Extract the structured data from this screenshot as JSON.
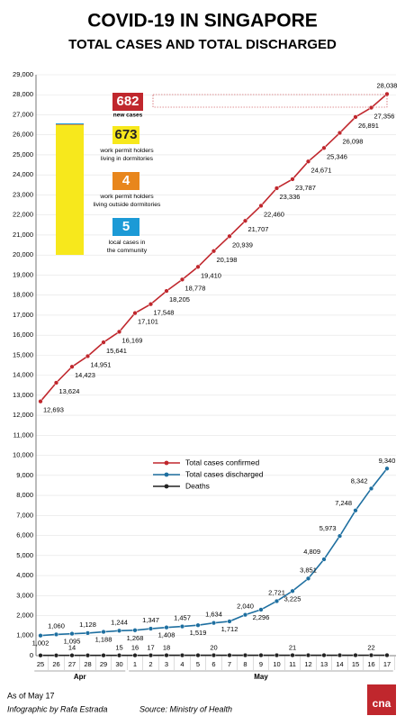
{
  "chart_data": {
    "type": "line",
    "title": "COVID-19 IN SINGAPORE",
    "subtitle": "TOTAL CASES AND TOTAL DISCHARGED",
    "categories": [
      "25",
      "26",
      "27",
      "28",
      "29",
      "30",
      "1",
      "2",
      "3",
      "4",
      "5",
      "6",
      "7",
      "8",
      "9",
      "10",
      "11",
      "12",
      "13",
      "14",
      "15",
      "16",
      "17"
    ],
    "months": [
      {
        "label": "Apr",
        "from": 0,
        "to": 5
      },
      {
        "label": "May",
        "from": 6,
        "to": 22
      }
    ],
    "series": [
      {
        "name": "Total cases confirmed",
        "color": "#c0272d",
        "values": [
          12693,
          13624,
          14423,
          14951,
          15641,
          16169,
          17101,
          17548,
          18205,
          18778,
          19410,
          20198,
          20939,
          21707,
          22460,
          23336,
          23787,
          24671,
          25346,
          26098,
          26891,
          27356,
          28038
        ],
        "value_labels": [
          "12,693",
          "13,624",
          "14,423",
          "14,951",
          "15,641",
          "16,169",
          "17,101",
          "17,548",
          "18,205",
          "18,778",
          "19,410",
          "20,198",
          "20,939",
          "21,707",
          "22,460",
          "23,336",
          "23,787",
          "24,671",
          "25,346",
          "26,098",
          "26,891",
          "27,356",
          "28,038"
        ]
      },
      {
        "name": "Total cases discharged",
        "color": "#1e6fa0",
        "values": [
          1002,
          1060,
          1095,
          1128,
          1188,
          1244,
          1268,
          1347,
          1408,
          1457,
          1519,
          1634,
          1712,
          2040,
          2296,
          2721,
          3225,
          3851,
          4809,
          5973,
          7248,
          8342,
          9340
        ],
        "value_labels": [
          "1,002",
          "1,060",
          "1,095",
          "1,128",
          "1,188",
          "1,244",
          "1,268",
          "1,347",
          "1,408",
          "1,457",
          "1,519",
          "1,634",
          "1,712",
          "2,040",
          "2,296",
          "2,721",
          "3,225",
          "3,851",
          "4,809",
          "5,973",
          "7,248",
          "8,342",
          "9,340"
        ]
      },
      {
        "name": "Deaths",
        "color": "#222222",
        "values": [
          12,
          12,
          14,
          14,
          14,
          15,
          16,
          17,
          18,
          18,
          18,
          20,
          20,
          20,
          20,
          20,
          21,
          21,
          21,
          21,
          21,
          22,
          22
        ],
        "value_labels": [
          null,
          null,
          "14",
          null,
          null,
          "15",
          "16",
          "17",
          "18",
          null,
          null,
          "20",
          null,
          null,
          null,
          null,
          "21",
          null,
          null,
          null,
          null,
          "22",
          null
        ]
      }
    ],
    "ylim": [
      0,
      29000
    ],
    "yticks": [
      0,
      {
        "value": 1000,
        "label": "1,000"
      },
      {
        "value": 2000,
        "label": "2,000"
      },
      {
        "value": 3000,
        "label": "3,000"
      },
      {
        "value": 4000,
        "label": "4,000"
      },
      {
        "value": 5000,
        "label": "5,000"
      },
      {
        "value": 6000,
        "label": "6,000"
      },
      {
        "value": 7000,
        "label": "7,000"
      },
      {
        "value": 8000,
        "label": "8,000"
      },
      {
        "value": 9000,
        "label": "9,000"
      },
      {
        "value": 10000,
        "label": "10,000"
      },
      {
        "value": 11000,
        "label": "11,000"
      },
      {
        "value": 12000,
        "label": "12,000"
      },
      {
        "value": 13000,
        "label": "13,000"
      },
      {
        "value": 14000,
        "label": "14,000"
      },
      {
        "value": 15000,
        "label": "15,000"
      },
      {
        "value": 16000,
        "label": "16,000"
      },
      {
        "value": 17000,
        "label": "17,000"
      },
      {
        "value": 18000,
        "label": "18,000"
      },
      {
        "value": 19000,
        "label": "19,000"
      },
      {
        "value": 20000,
        "label": "20,000"
      },
      {
        "value": 21000,
        "label": "21,000"
      },
      {
        "value": 22000,
        "label": "22,000"
      },
      {
        "value": 23000,
        "label": "23,000"
      },
      {
        "value": 24000,
        "label": "24,000"
      },
      {
        "value": 25000,
        "label": "25,000"
      },
      {
        "value": 26000,
        "label": "26,000"
      },
      {
        "value": 27000,
        "label": "27,000"
      },
      {
        "value": 28000,
        "label": "28,000"
      },
      {
        "value": 29000,
        "label": "29,000"
      }
    ],
    "grid": true,
    "new_cases": {
      "value": 682,
      "label": "new cases",
      "color": "#c0272d",
      "breakdown": [
        {
          "value": 673,
          "label": "work permit holders living in dormitories",
          "color": "#f7e81c"
        },
        {
          "value": 4,
          "label": "work permit holders living outside dormitories",
          "color": "#e8861c"
        },
        {
          "value": 5,
          "label": "local cases in the community",
          "color": "#1c9ad6"
        }
      ]
    },
    "note": "As of May 17",
    "credit": "Infographic by Rafa Estrada",
    "source": "Source: Ministry of Health",
    "logo": "cna"
  }
}
